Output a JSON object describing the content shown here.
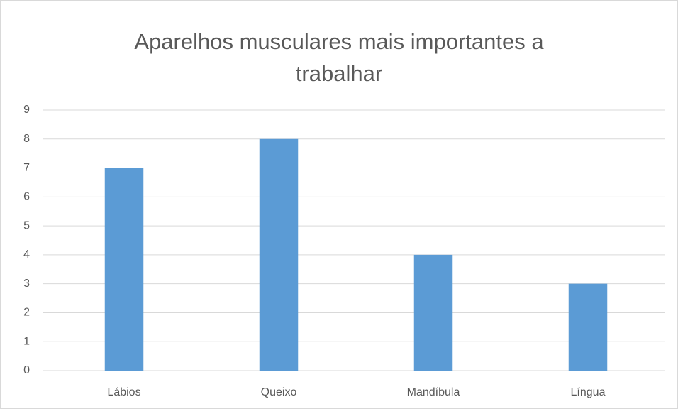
{
  "chart_data": {
    "type": "bar",
    "title": "Aparelhos musculares mais importantes a trabalhar",
    "categories": [
      "Lábios",
      "Queixo",
      "Mandíbula",
      "Língua"
    ],
    "values": [
      7,
      8,
      4,
      3
    ],
    "color": "#5b9bd5",
    "ylim": [
      0,
      9
    ],
    "yticks": [
      0,
      1,
      2,
      3,
      4,
      5,
      6,
      7,
      8,
      9
    ],
    "grid": true
  }
}
